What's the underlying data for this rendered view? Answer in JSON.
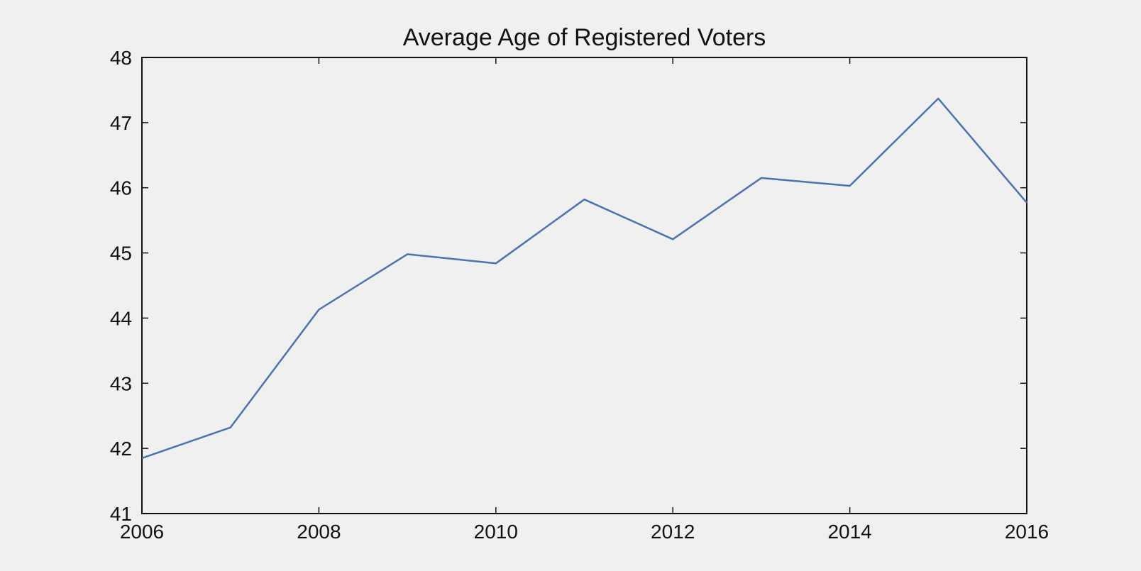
{
  "chart_data": {
    "type": "line",
    "title": "Average Age of Registered Voters",
    "xlabel": "",
    "ylabel": "",
    "x": [
      2006,
      2007,
      2008,
      2009,
      2010,
      2011,
      2012,
      2013,
      2014,
      2015,
      2016
    ],
    "series": [
      {
        "values": [
          41.85,
          42.32,
          44.13,
          44.98,
          44.84,
          45.82,
          45.21,
          46.15,
          46.03,
          47.37,
          45.77
        ]
      }
    ],
    "xlim": [
      2006,
      2016
    ],
    "ylim": [
      41,
      48
    ],
    "xticks": [
      2006,
      2008,
      2010,
      2012,
      2014,
      2016
    ],
    "xtick_labels": [
      "2006",
      "2008",
      "2010",
      "2012",
      "2014",
      "2016"
    ],
    "yticks": [
      41,
      42,
      43,
      44,
      45,
      46,
      47,
      48
    ],
    "ytick_labels": [
      "41",
      "42",
      "43",
      "44",
      "45",
      "46",
      "47",
      "48"
    ],
    "grid": false,
    "line_color": "#4c72b0",
    "background_color": "#f0f0f0"
  }
}
